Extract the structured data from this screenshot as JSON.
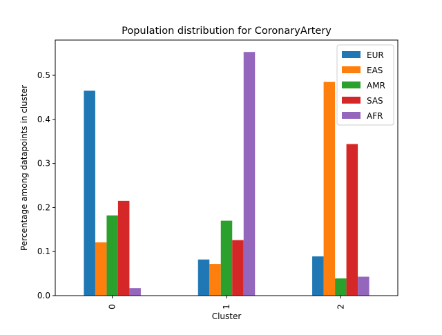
{
  "chart_data": {
    "type": "bar",
    "title": "Population distribution for CoronaryArtery",
    "xlabel": "Cluster",
    "ylabel": "Percentage among datapoints in cluster",
    "categories": [
      "0",
      "1",
      "2"
    ],
    "ylim": [
      0,
      0.58
    ],
    "yticks": [
      0.0,
      0.1,
      0.2,
      0.3,
      0.4,
      0.5
    ],
    "ytick_labels": [
      "0.0",
      "0.1",
      "0.2",
      "0.3",
      "0.4",
      "0.5"
    ],
    "grid": false,
    "legend_position": "top-right",
    "series": [
      {
        "name": "EUR",
        "color": "#1f77b4",
        "values": [
          0.465,
          0.082,
          0.089
        ]
      },
      {
        "name": "EAS",
        "color": "#ff7f0e",
        "values": [
          0.121,
          0.072,
          0.485
        ]
      },
      {
        "name": "AMR",
        "color": "#2ca02c",
        "values": [
          0.182,
          0.17,
          0.039
        ]
      },
      {
        "name": "SAS",
        "color": "#d62728",
        "values": [
          0.215,
          0.126,
          0.344
        ]
      },
      {
        "name": "AFR",
        "color": "#9467bd",
        "values": [
          0.017,
          0.553,
          0.043
        ]
      }
    ]
  }
}
